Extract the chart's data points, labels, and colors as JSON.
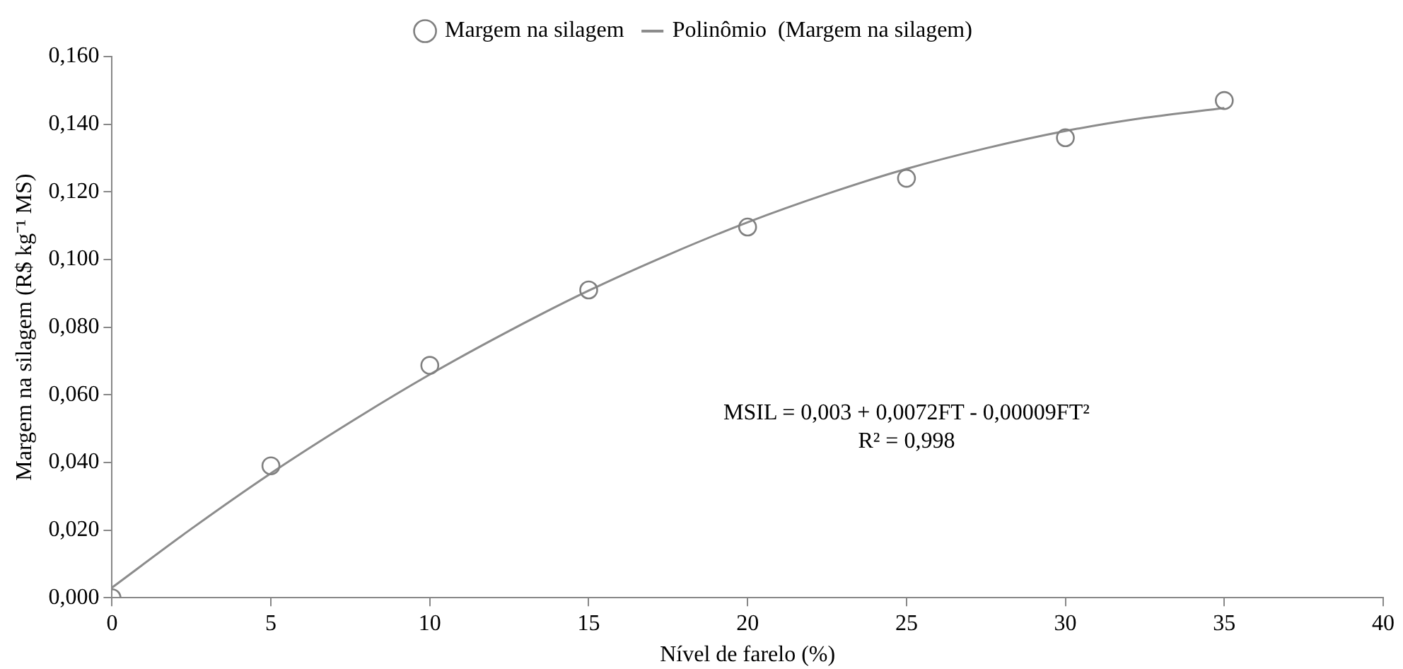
{
  "chart_data": {
    "type": "scatter",
    "xlabel": "Nível de farelo (%)",
    "ylabel": "Margem na silagem (R$ kg⁻¹ MS)",
    "x": [
      0,
      5,
      10,
      15,
      20,
      25,
      30,
      35
    ],
    "series": [
      {
        "name": "Margem na silagem",
        "type": "scatter",
        "color": "#808080",
        "marker": "circle",
        "values": [
          0.0,
          0.039,
          0.0687,
          0.091,
          0.1096,
          0.124,
          0.136,
          0.147
        ]
      },
      {
        "name": "Polinômio  (Margem na silagem)",
        "type": "line",
        "color": "#8c8c8c",
        "marker": "none",
        "x": [
          0,
          2.5,
          5,
          7.5,
          10,
          12.5,
          15,
          17.5,
          20,
          22.5,
          25,
          27.5,
          30,
          32.5,
          35
        ],
        "values": [
          0.003,
          0.0204,
          0.0368,
          0.0519,
          0.066,
          0.0789,
          0.0908,
          0.1014,
          0.111,
          0.1194,
          0.1268,
          0.1329,
          0.138,
          0.1419,
          0.1448
        ]
      }
    ],
    "xlim": [
      0,
      40
    ],
    "xticks": [
      0,
      5,
      10,
      15,
      20,
      25,
      30,
      35,
      40
    ],
    "ylim": [
      0,
      0.16
    ],
    "yticks": [
      {
        "value": 0,
        "label": "0,000"
      },
      {
        "value": 0.02,
        "label": "0,020"
      },
      {
        "value": 0.04,
        "label": "0,040"
      },
      {
        "value": 0.06,
        "label": "0,060"
      },
      {
        "value": 0.08,
        "label": "0,080"
      },
      {
        "value": 0.1,
        "label": "0,100"
      },
      {
        "value": 0.12,
        "label": "0,120"
      },
      {
        "value": 0.14,
        "label": "0,140"
      },
      {
        "value": 0.16,
        "label": "0,160"
      }
    ],
    "grid": false,
    "legend": "top",
    "annotations": [
      "MSIL = 0,003 + 0,0072FT - 0,00009FT²",
      "R² = 0,998"
    ]
  }
}
